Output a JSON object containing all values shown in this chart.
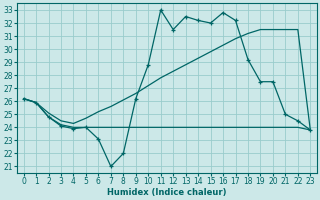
{
  "xlabel": "Humidex (Indice chaleur)",
  "bg_color": "#cce8e8",
  "grid_color": "#99cccc",
  "line_color": "#006666",
  "xlim": [
    -0.5,
    23.5
  ],
  "ylim": [
    20.5,
    33.5
  ],
  "xticks": [
    0,
    1,
    2,
    3,
    4,
    5,
    6,
    7,
    8,
    9,
    10,
    11,
    12,
    13,
    14,
    15,
    16,
    17,
    18,
    19,
    20,
    21,
    22,
    23
  ],
  "yticks": [
    21,
    22,
    23,
    24,
    25,
    26,
    27,
    28,
    29,
    30,
    31,
    32,
    33
  ],
  "line1_x": [
    0,
    1,
    2,
    3,
    4,
    5,
    6,
    7,
    8,
    9,
    10,
    11,
    12,
    13,
    14,
    15,
    16,
    17,
    18,
    19,
    20,
    21,
    22,
    23
  ],
  "line1_y": [
    26.2,
    25.9,
    24.8,
    24.1,
    23.9,
    24.0,
    23.1,
    21.0,
    22.0,
    26.2,
    28.8,
    33.0,
    31.5,
    32.5,
    32.2,
    32.0,
    32.8,
    32.2,
    29.2,
    27.5,
    27.5,
    25.0,
    24.5,
    23.8
  ],
  "line2_x": [
    0,
    1,
    2,
    3,
    4,
    5,
    6,
    7,
    8,
    9,
    10,
    11,
    12,
    13,
    14,
    15,
    16,
    17,
    18,
    19,
    20,
    21,
    22,
    23
  ],
  "line2_y": [
    26.2,
    25.9,
    24.8,
    24.2,
    24.0,
    24.0,
    24.0,
    24.0,
    24.0,
    24.0,
    24.0,
    24.0,
    24.0,
    24.0,
    24.0,
    24.0,
    24.0,
    24.0,
    24.0,
    24.0,
    24.0,
    24.0,
    24.0,
    23.8
  ],
  "line3_x": [
    0,
    1,
    2,
    3,
    4,
    5,
    6,
    7,
    8,
    9,
    10,
    11,
    12,
    13,
    14,
    15,
    16,
    17,
    18,
    19,
    20,
    21,
    22,
    23
  ],
  "line3_y": [
    26.2,
    25.9,
    25.1,
    24.5,
    24.3,
    24.7,
    25.2,
    25.6,
    26.1,
    26.6,
    27.2,
    27.8,
    28.3,
    28.8,
    29.3,
    29.8,
    30.3,
    30.8,
    31.2,
    31.5,
    31.5,
    31.5,
    31.5,
    23.8
  ]
}
